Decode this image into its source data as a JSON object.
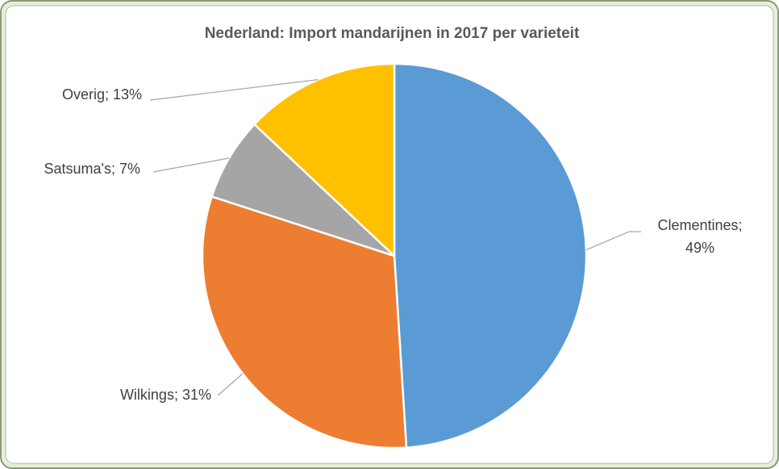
{
  "chart_data": {
    "type": "pie",
    "title": "Nederland: Import mandarijnen in 2017 per varieteit",
    "categories": [
      "Clementines",
      "Wilkings",
      "Satsuma's",
      "Overig"
    ],
    "values": [
      49,
      31,
      7,
      13
    ],
    "value_labels": [
      "49%",
      "31%",
      "7%",
      "13%"
    ],
    "colors": [
      "#5b9bd5",
      "#ed7d31",
      "#a5a5a5",
      "#ffc000"
    ]
  }
}
